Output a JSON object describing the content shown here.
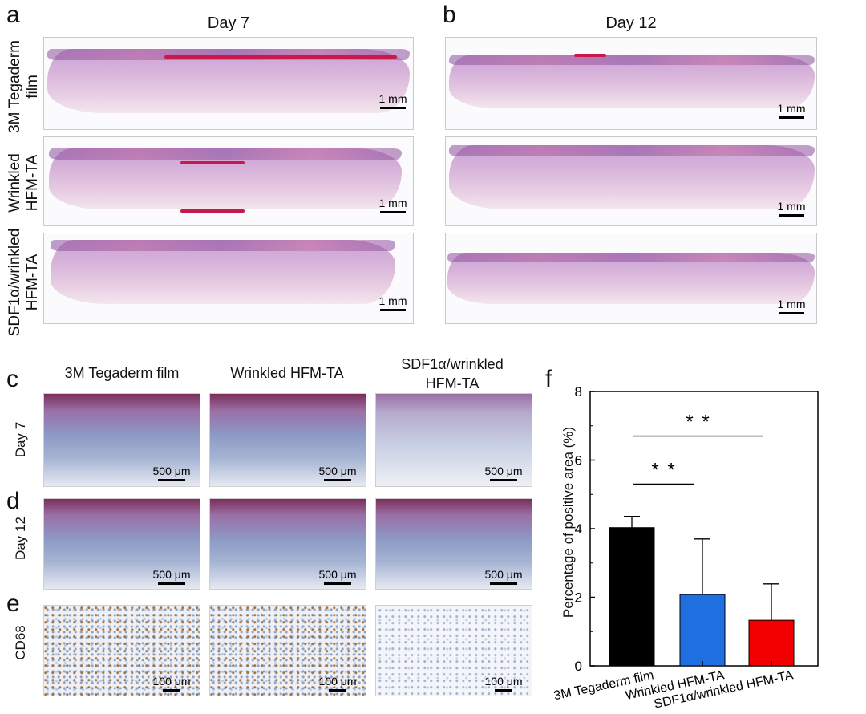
{
  "panels": {
    "a": "a",
    "b": "b",
    "c": "c",
    "d": "d",
    "e": "e",
    "f": "f"
  },
  "top": {
    "columns": [
      "Day 7",
      "Day 12"
    ],
    "rows": [
      {
        "line1": "3M Tegaderm",
        "line2": "film"
      },
      {
        "line1": "Wrinkled",
        "line2": "HFM-TA"
      },
      {
        "line1": "SDF1α/wrinkled",
        "line2": "HFM-TA"
      }
    ],
    "scale_label": "1 mm"
  },
  "bottom": {
    "columns": [
      {
        "line1": "3M Tegaderm film",
        "line2": ""
      },
      {
        "line1": "Wrinkled HFM-TA",
        "line2": ""
      },
      {
        "line1": "SDF1α/wrinkled",
        "line2": "HFM-TA"
      }
    ],
    "rows": [
      "Day 7",
      "Day 12",
      "CD68"
    ],
    "scale_500": "500 μm",
    "scale_100": "100 μm"
  },
  "chart_data": {
    "type": "bar",
    "categories": [
      "3M Tegaderm film",
      "Wrinkled HFM-TA",
      "SDF1α/wrinkled HFM-TA"
    ],
    "values": [
      4.03,
      2.08,
      1.33
    ],
    "errors": [
      0.33,
      1.62,
      1.06
    ],
    "colors": [
      "#000000",
      "#1f6fe0",
      "#f20000"
    ],
    "ylabel": "Percentage of positive area (%)",
    "xlabel": "",
    "ylim": [
      0,
      8
    ],
    "yticks": [
      0,
      2,
      4,
      6,
      8
    ],
    "significance": [
      {
        "from": 0,
        "to": 1,
        "label": "* *",
        "y": 5.3
      },
      {
        "from": 0,
        "to": 2,
        "label": "* *",
        "y": 6.7
      }
    ]
  }
}
